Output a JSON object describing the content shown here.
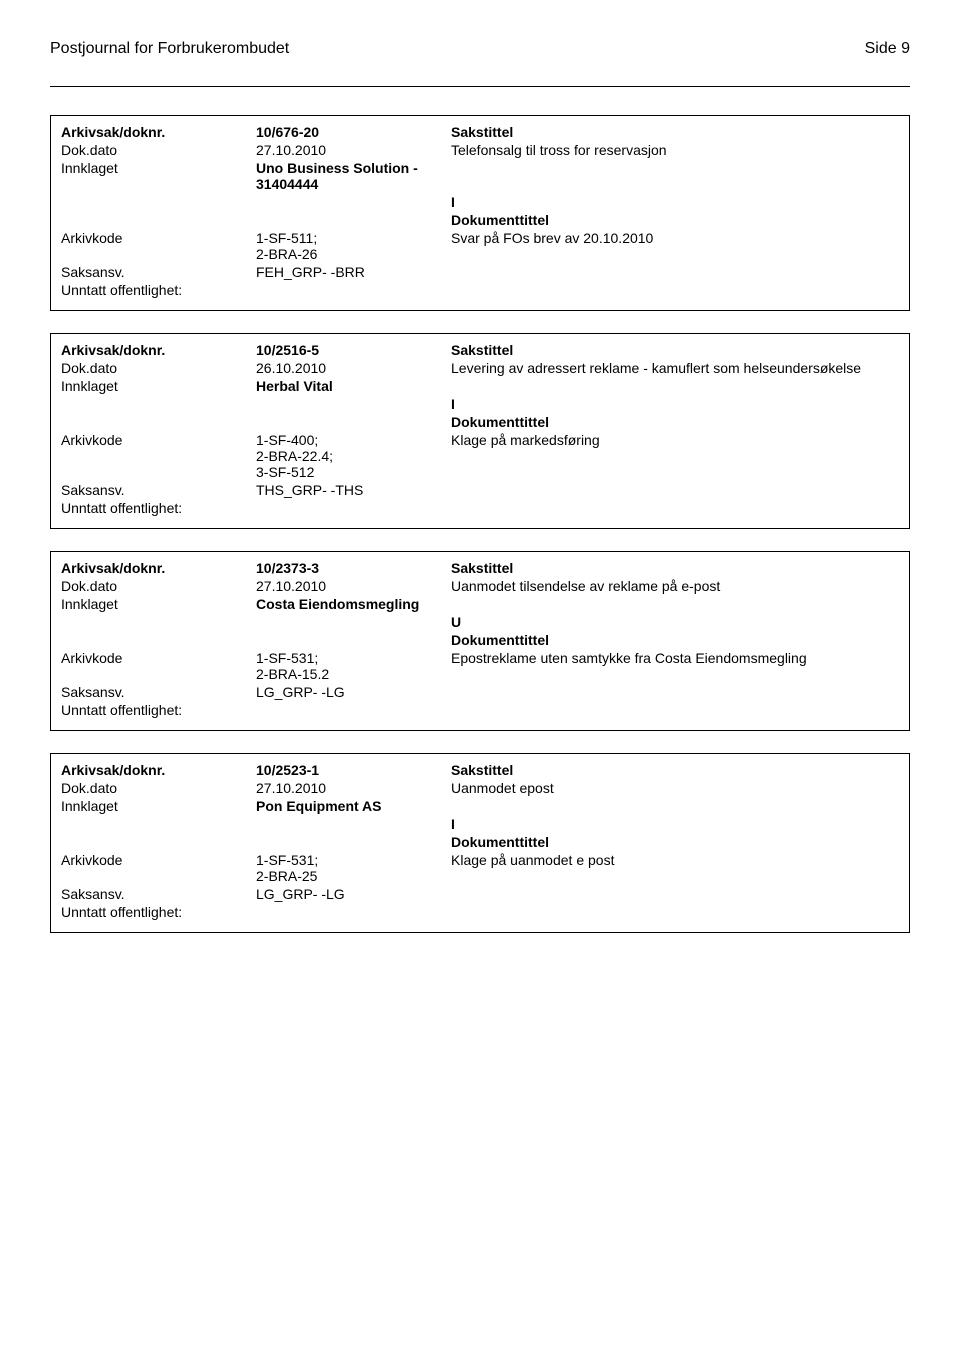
{
  "header": {
    "title": "Postjournal for Forbrukerombudet",
    "page": "Side 9"
  },
  "labels": {
    "arkivsak": "Arkivsak/doknr.",
    "dokdato": "Dok.dato",
    "innklaget": "Innklaget",
    "arkivkode": "Arkivkode",
    "saksansv": "Saksansv.",
    "unntatt": "Unntatt offentlighet:",
    "sakstittel": "Sakstittel",
    "dokumenttittel": "Dokumenttittel"
  },
  "records": [
    {
      "arkivsak": "10/676-20",
      "dokdato": "27.10.2010",
      "sakstittel": "Telefonsalg til tross for reservasjon",
      "innklaget": "Uno Business Solution - 31404444",
      "inout": "I",
      "arkivkode": "1-SF-511;\n2-BRA-26",
      "doktittel": "Svar på FOs brev av 20.10.2010",
      "saksansv": "FEH_GRP- -BRR"
    },
    {
      "arkivsak": "10/2516-5",
      "dokdato": "26.10.2010",
      "sakstittel": "Levering av adressert reklame - kamuflert som helseundersøkelse",
      "innklaget": "Herbal Vital",
      "inout": "I",
      "arkivkode": "1-SF-400;\n2-BRA-22.4;\n3-SF-512",
      "doktittel": "Klage på markedsføring",
      "saksansv": "THS_GRP- -THS"
    },
    {
      "arkivsak": "10/2373-3",
      "dokdato": "27.10.2010",
      "sakstittel": "Uanmodet tilsendelse av reklame på e-post",
      "innklaget": "Costa Eiendomsmegling",
      "inout": "U",
      "arkivkode": "1-SF-531;\n2-BRA-15.2",
      "doktittel": "Epostreklame uten samtykke fra Costa Eiendomsmegling",
      "saksansv": "LG_GRP- -LG"
    },
    {
      "arkivsak": "10/2523-1",
      "dokdato": "27.10.2010",
      "sakstittel": "Uanmodet epost",
      "innklaget": "Pon Equipment AS",
      "inout": "I",
      "arkivkode": "1-SF-531;\n2-BRA-25",
      "doktittel": "Klage på uanmodet e post",
      "saksansv": "LG_GRP- -LG"
    }
  ]
}
